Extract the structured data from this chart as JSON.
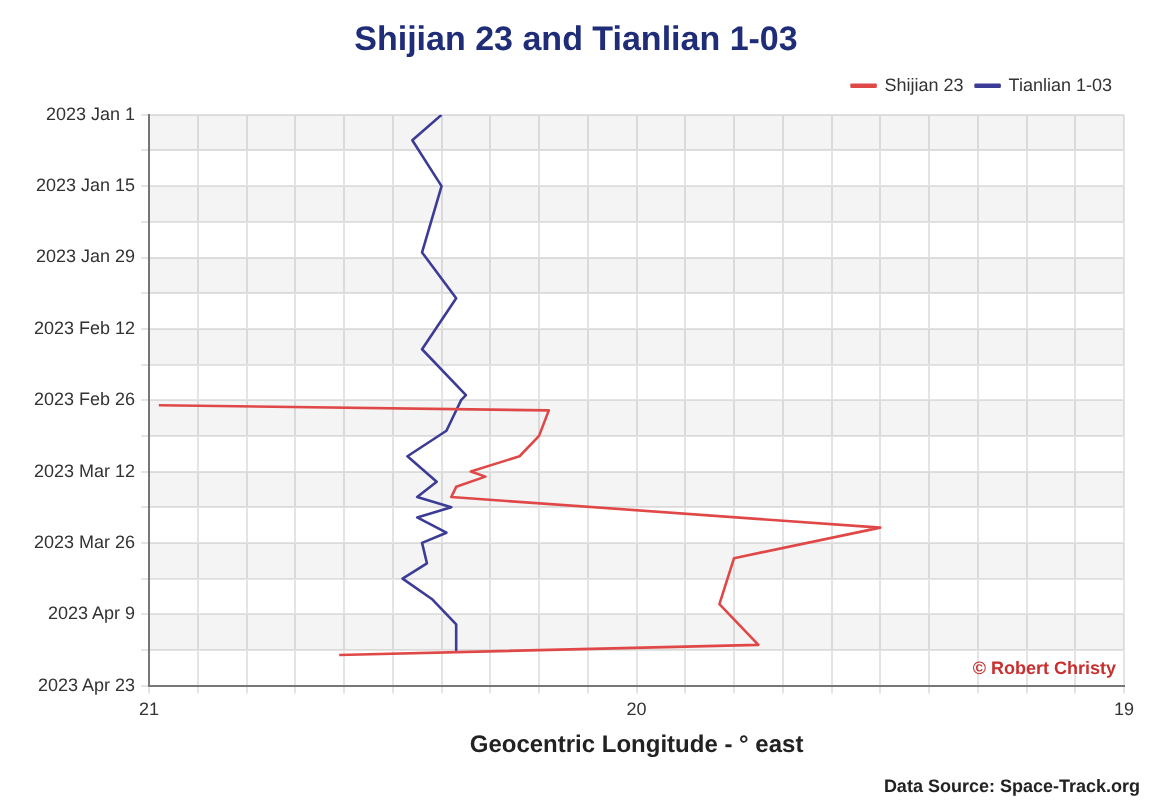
{
  "chart_data": {
    "type": "line",
    "title": "Shijian 23 and Tianlian 1-03",
    "xlabel": "Geocentric Longitude - ° east",
    "orientation": "horizontal",
    "marker": "none",
    "grid": true,
    "legend": "top right",
    "xlim": [
      21,
      19
    ],
    "xticks": [
      21,
      {
        "value": 20.9,
        "label": null
      },
      {
        "value": 20.8,
        "label": null
      },
      {
        "value": 20.7,
        "label": null
      },
      {
        "value": 20.6,
        "label": null
      },
      {
        "value": 20.5,
        "label": null
      },
      {
        "value": 20.4,
        "label": null
      },
      {
        "value": 20.3,
        "label": null
      },
      {
        "value": 20.2,
        "label": null
      },
      {
        "value": 20.1,
        "label": null
      },
      20,
      {
        "value": 19.9,
        "label": null
      },
      {
        "value": 19.8,
        "label": null
      },
      {
        "value": 19.7,
        "label": null
      },
      {
        "value": 19.6,
        "label": null
      },
      {
        "value": 19.5,
        "label": null
      },
      {
        "value": 19.4,
        "label": null
      },
      {
        "value": 19.3,
        "label": null
      },
      {
        "value": 19.2,
        "label": null
      },
      {
        "value": 19.1,
        "label": null
      },
      19
    ],
    "ylim": [
      "2023-04-23",
      "2023-01-01"
    ],
    "yticks": [
      {
        "value": "2023-01-01",
        "label": "2023 Jan 1"
      },
      {
        "value": "2023-01-08",
        "label": null
      },
      {
        "value": "2023-01-15",
        "label": "2023 Jan 15"
      },
      {
        "value": "2023-01-22",
        "label": null
      },
      {
        "value": "2023-01-29",
        "label": "2023 Jan 29"
      },
      {
        "value": "2023-02-05",
        "label": null
      },
      {
        "value": "2023-02-12",
        "label": "2023 Feb 12"
      },
      {
        "value": "2023-02-19",
        "label": null
      },
      {
        "value": "2023-02-26",
        "label": "2023 Feb 26"
      },
      {
        "value": "2023-03-05",
        "label": null
      },
      {
        "value": "2023-03-12",
        "label": "2023 Mar 12"
      },
      {
        "value": "2023-03-19",
        "label": null
      },
      {
        "value": "2023-03-26",
        "label": "2023 Mar 26"
      },
      {
        "value": "2023-04-02",
        "label": null
      },
      {
        "value": "2023-04-09",
        "label": "2023 Apr 9"
      },
      {
        "value": "2023-04-16",
        "label": null
      },
      {
        "value": "2023-04-23",
        "label": "2023 Apr 23"
      }
    ],
    "series": [
      {
        "name": "Shijian 23",
        "color": "#e04848",
        "x": [
          "2023-02-27",
          "2023-02-28",
          "2023-03-05",
          "2023-03-09",
          "2023-03-12",
          "2023-03-13",
          "2023-03-15",
          "2023-03-17",
          "2023-03-23",
          "2023-03-29",
          "2023-04-07",
          "2023-04-15",
          "2023-04-17"
        ],
        "values": [
          20.98,
          20.18,
          20.2,
          20.24,
          20.34,
          20.31,
          20.37,
          20.38,
          19.5,
          19.8,
          19.83,
          19.75,
          20.61
        ]
      },
      {
        "name": "Tianlian 1-03",
        "color": "#3c3c96",
        "x": [
          "2023-01-01",
          "2023-01-06",
          "2023-01-15",
          "2023-01-28",
          "2023-02-06",
          "2023-02-16",
          "2023-02-25",
          "2023-02-26",
          "2023-03-04",
          "2023-03-09",
          "2023-03-14",
          "2023-03-17",
          "2023-03-19",
          "2023-03-21",
          "2023-03-24",
          "2023-03-26",
          "2023-03-30",
          "2023-04-02",
          "2023-04-06",
          "2023-04-11",
          "2023-04-16"
        ],
        "values": [
          20.4,
          20.46,
          20.4,
          20.44,
          20.37,
          20.44,
          20.35,
          20.36,
          20.39,
          20.47,
          20.41,
          20.45,
          20.38,
          20.45,
          20.39,
          20.44,
          20.43,
          20.48,
          20.42,
          20.37,
          20.37
        ]
      }
    ],
    "annotations": [
      "© Robert Christy",
      "Data Source: Space-Track.org"
    ]
  }
}
